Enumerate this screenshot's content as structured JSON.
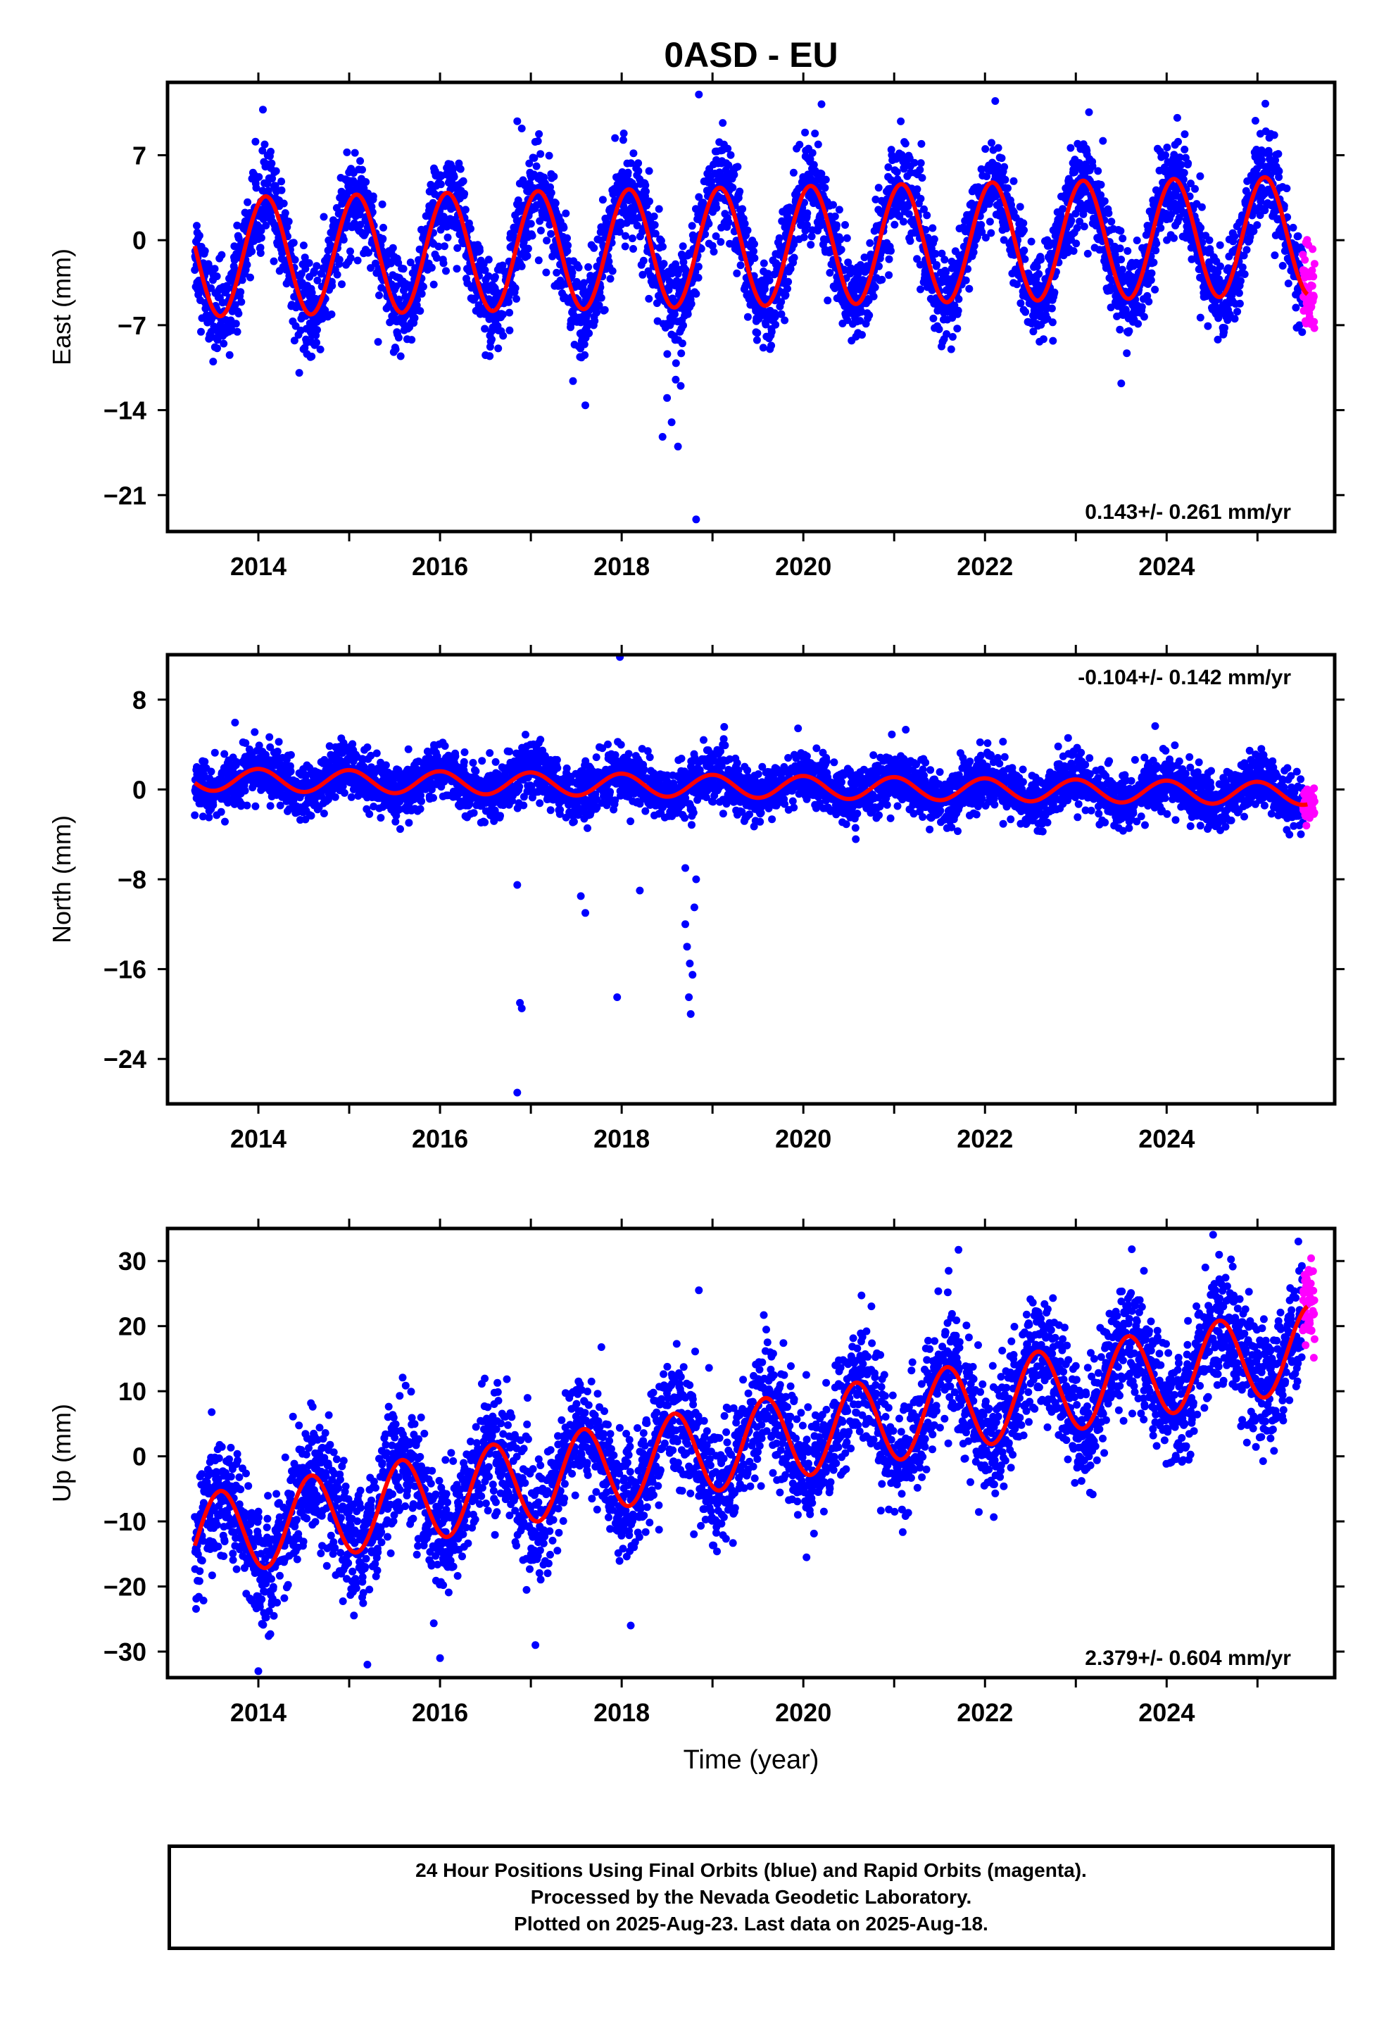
{
  "title": "0ASD - EU",
  "xlabel": "Time (year)",
  "colors": {
    "final": "#0000ff",
    "rapid": "#ff00ff",
    "model": "#ff0000",
    "frame": "#000000"
  },
  "footer": {
    "lines": [
      "24 Hour Positions Using Final Orbits (blue) and Rapid Orbits (magenta).",
      "Processed by the Nevada Geodetic Laboratory.",
      "Plotted on 2025-Aug-23. Last data on 2025-Aug-18."
    ]
  },
  "chart_data": [
    {
      "type": "scatter",
      "ylabel": "East (mm)",
      "xlim": [
        2013.0,
        2025.85
      ],
      "ylim": [
        -24,
        13
      ],
      "xticks": [
        2014,
        2016,
        2018,
        2020,
        2022,
        2024
      ],
      "yticks": [
        7,
        0,
        -7,
        -14,
        -21
      ],
      "ytick_labels": [
        "7",
        "0",
        "−7",
        "−14",
        "−21"
      ],
      "rate_label": "0.143+/- 0.261 mm/yr",
      "rate_position": "bottom-right",
      "model": {
        "offset": -1.4,
        "rate_mm_per_yr": 0.143,
        "annual_amplitude": 4.9,
        "peak_phase_year_fraction": 0.08,
        "start": 2013.3,
        "end": 2025.55
      },
      "series": [
        {
          "name": "Final Orbits (blue)",
          "x_range": [
            2013.3,
            2025.5
          ],
          "noise_mm": 1.9
        },
        {
          "name": "Rapid Orbits (magenta)",
          "x_range": [
            2025.5,
            2025.63
          ],
          "noise_mm": 1.6
        }
      ],
      "outliers": [
        {
          "x": 2016.85,
          "y": 9.8
        },
        {
          "x": 2016.9,
          "y": 9.2
        },
        {
          "x": 2017.6,
          "y": -13.6
        },
        {
          "x": 2018.45,
          "y": -16.2
        },
        {
          "x": 2018.55,
          "y": -15.0
        },
        {
          "x": 2018.62,
          "y": -17.0
        },
        {
          "x": 2018.5,
          "y": -13.0
        },
        {
          "x": 2018.65,
          "y": -12.0
        },
        {
          "x": 2018.85,
          "y": 12.0
        },
        {
          "x": 2018.82,
          "y": -23.0
        },
        {
          "x": 2020.2,
          "y": 11.2
        },
        {
          "x": 2023.5,
          "y": -11.8
        }
      ]
    },
    {
      "type": "scatter",
      "ylabel": "North (mm)",
      "xlim": [
        2013.0,
        2025.85
      ],
      "ylim": [
        -28,
        12
      ],
      "xticks": [
        2014,
        2016,
        2018,
        2020,
        2022,
        2024
      ],
      "yticks": [
        8,
        0,
        -8,
        -16,
        -24
      ],
      "ytick_labels": [
        "8",
        "0",
        "−8",
        "−16",
        "−24"
      ],
      "rate_label": "-0.104+/- 0.142 mm/yr",
      "rate_position": "top-right",
      "model": {
        "offset": 0.9,
        "rate_mm_per_yr": -0.104,
        "annual_amplitude": 1.0,
        "peak_phase_year_fraction": 0.0,
        "start": 2013.3,
        "end": 2025.55
      },
      "series": [
        {
          "name": "Final Orbits (blue)",
          "x_range": [
            2013.3,
            2025.5
          ],
          "noise_mm": 1.2
        },
        {
          "name": "Rapid Orbits (magenta)",
          "x_range": [
            2025.5,
            2025.63
          ],
          "noise_mm": 0.8
        }
      ],
      "outliers": [
        {
          "x": 2016.85,
          "y": -8.5
        },
        {
          "x": 2016.88,
          "y": -19.0
        },
        {
          "x": 2016.9,
          "y": -19.5
        },
        {
          "x": 2016.85,
          "y": -27.0
        },
        {
          "x": 2017.55,
          "y": -9.5
        },
        {
          "x": 2017.6,
          "y": -11.0
        },
        {
          "x": 2017.95,
          "y": -18.5
        },
        {
          "x": 2017.98,
          "y": 11.8
        },
        {
          "x": 2018.2,
          "y": -9.0
        },
        {
          "x": 2018.7,
          "y": -12.0
        },
        {
          "x": 2018.72,
          "y": -14.0
        },
        {
          "x": 2018.75,
          "y": -15.5
        },
        {
          "x": 2018.78,
          "y": -16.5
        },
        {
          "x": 2018.74,
          "y": -18.5
        },
        {
          "x": 2018.76,
          "y": -20.0
        },
        {
          "x": 2018.8,
          "y": -10.5
        },
        {
          "x": 2018.82,
          "y": -8.0
        },
        {
          "x": 2018.7,
          "y": -7.0
        }
      ]
    },
    {
      "type": "scatter",
      "ylabel": "Up (mm)",
      "xlim": [
        2013.0,
        2025.85
      ],
      "ylim": [
        -34,
        35
      ],
      "xticks": [
        2014,
        2016,
        2018,
        2020,
        2022,
        2024
      ],
      "yticks": [
        30,
        20,
        10,
        0,
        -10,
        -20,
        -30
      ],
      "ytick_labels": [
        "30",
        "20",
        "10",
        "0",
        "−10",
        "−20",
        "−30"
      ],
      "rate_label": "2.379+/- 0.604 mm/yr",
      "rate_position": "bottom-right",
      "model": {
        "offset": -12.5,
        "rate_mm_per_yr": 2.379,
        "annual_amplitude": 6.5,
        "peak_phase_year_fraction": 0.58,
        "start": 2013.3,
        "end": 2025.55
      },
      "series": [
        {
          "name": "Final Orbits (blue)",
          "x_range": [
            2013.3,
            2025.5
          ],
          "noise_mm": 4.6
        },
        {
          "name": "Rapid Orbits (magenta)",
          "x_range": [
            2025.5,
            2025.63
          ],
          "noise_mm": 3.0
        }
      ],
      "outliers": [
        {
          "x": 2014.0,
          "y": -33.0
        },
        {
          "x": 2015.2,
          "y": -32.0
        },
        {
          "x": 2016.0,
          "y": -31.0
        },
        {
          "x": 2017.05,
          "y": -29.0
        },
        {
          "x": 2018.1,
          "y": -26.0
        },
        {
          "x": 2018.85,
          "y": 25.5
        },
        {
          "x": 2021.6,
          "y": 28.5
        },
        {
          "x": 2023.75,
          "y": 28.5
        },
        {
          "x": 2025.45,
          "y": 33.0
        }
      ]
    }
  ]
}
